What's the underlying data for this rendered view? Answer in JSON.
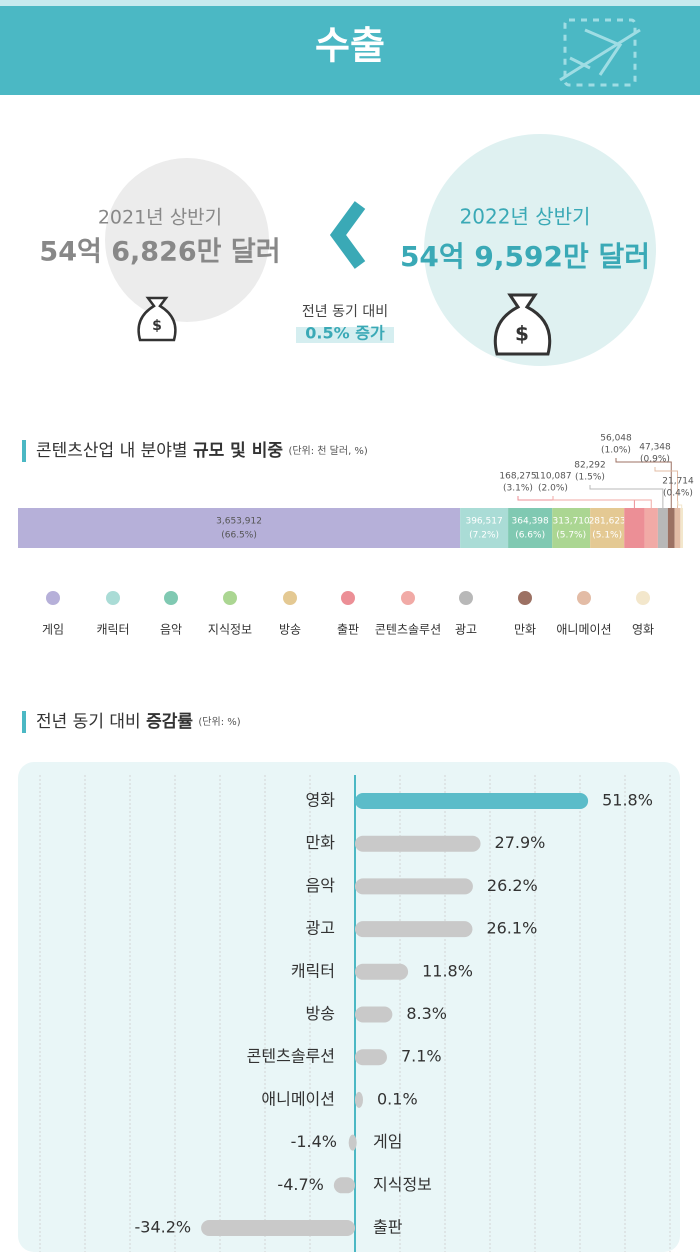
{
  "header": {
    "title": "수출"
  },
  "comparison": {
    "prev": {
      "period": "2021년 상반기",
      "amount": "54억 6,826만 달러"
    },
    "curr": {
      "period": "2022년 상반기",
      "amount": "54억 9,592만 달러"
    },
    "change_label": "전년 동기 대비",
    "change_value": "0.5% 증가"
  },
  "chart_data": [
    {
      "type": "stacked_bar",
      "title": "콘텐츠산업 내 분야별",
      "title_bold": "규모 및 비중",
      "unit": "(단위: 천 달러, %)",
      "categories": [
        "게임",
        "캐릭터",
        "음악",
        "지식정보",
        "방송",
        "출판",
        "콘텐츠솔루션",
        "광고",
        "만화",
        "애니메이션",
        "영화"
      ],
      "values": [
        3653912,
        396517,
        364398,
        313710,
        281623,
        168275,
        110087,
        82292,
        56048,
        47348,
        21714
      ],
      "value_labels": [
        "3,653,912",
        "396,517",
        "364,398",
        "313,710",
        "281,623",
        "168,275",
        "110,087",
        "82,292",
        "56,048",
        "47,348",
        "21,714"
      ],
      "shares": [
        66.5,
        7.2,
        6.6,
        5.7,
        5.1,
        3.1,
        2.0,
        1.5,
        1.0,
        0.9,
        0.4
      ],
      "share_labels": [
        "(66.5%)",
        "(7.2%)",
        "(6.6%)",
        "(5.7%)",
        "(5.1%)",
        "(3.1%)",
        "(2.0%)",
        "(1.5%)",
        "(1.0%)",
        "(0.9%)",
        "(0.4%)"
      ],
      "colors": [
        "#b6b0d9",
        "#aadcd6",
        "#80c9b2",
        "#abd692",
        "#e4c993",
        "#ec8f96",
        "#f1aaa6",
        "#b8b8b8",
        "#9c7163",
        "#e3bca6",
        "#f3e7cc"
      ]
    },
    {
      "type": "bar",
      "orientation": "horizontal",
      "title": "전년 동기 대비",
      "title_bold": "증감률",
      "unit": "(단위: %)",
      "categories": [
        "영화",
        "만화",
        "음악",
        "광고",
        "캐릭터",
        "방송",
        "콘텐츠솔루션",
        "애니메이션",
        "게임",
        "지식정보",
        "출판"
      ],
      "values": [
        51.8,
        27.9,
        26.2,
        26.1,
        11.8,
        8.3,
        7.1,
        0.1,
        -1.4,
        -4.7,
        -34.2
      ],
      "value_labels": [
        "51.8%",
        "27.9%",
        "26.2%",
        "26.1%",
        "11.8%",
        "8.3%",
        "7.1%",
        "0.1%",
        "-1.4%",
        "-4.7%",
        "-34.2%"
      ],
      "colors": [
        "#5bbcc9",
        "#c9c9c9",
        "#c9c9c9",
        "#c9c9c9",
        "#c9c9c9",
        "#c9c9c9",
        "#c9c9c9",
        "#c9c9c9",
        "#c9c9c9",
        "#c9c9c9",
        "#c9c9c9"
      ],
      "xlim": [
        -74,
        72
      ],
      "xticks": [
        -70,
        -60,
        -50,
        -40,
        -30,
        -20,
        -10,
        0,
        10,
        20,
        30,
        40,
        50,
        60,
        70
      ],
      "grid": true
    }
  ]
}
